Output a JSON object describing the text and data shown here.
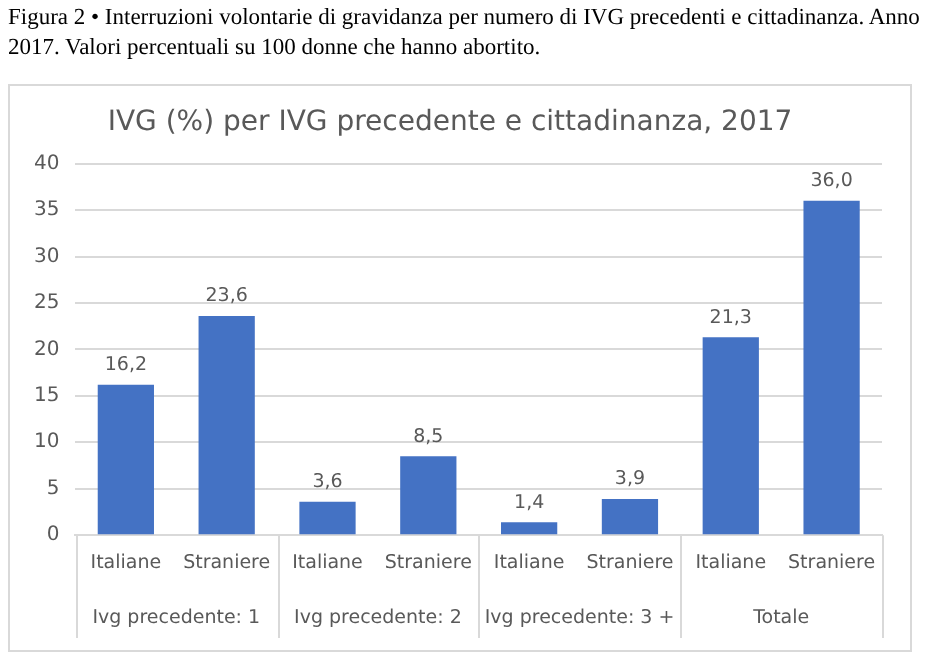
{
  "chart_data": {
    "type": "bar",
    "title": "IVG (%) per IVG precedente e cittadinanza, 2017",
    "subtitle": "Figura 2 • Interruzioni volontarie di gravidanza per numero di IVG precedenti e cittadinanza. Anno 2017. Valori percentuali su 100 donne che hanno abortito.",
    "categories": [
      "Italiane",
      "Straniere",
      "Italiane",
      "Straniere",
      "Italiane",
      "Straniere",
      "Italiane",
      "Straniere"
    ],
    "values": [
      16.2,
      23.6,
      3.6,
      8.5,
      1.4,
      3.9,
      21.3,
      36.0
    ],
    "value_labels": [
      "16,2",
      "23,6",
      "3,6",
      "8,5",
      "1,4",
      "3,9",
      "21,3",
      "36,0"
    ],
    "color": "#4472c4",
    "annotations": [
      "Ivg precedente: 1",
      "Ivg precedente: 2",
      "Ivg precedente: 3 +",
      "Totale"
    ],
    "ylim": [
      0,
      40
    ],
    "yticks": [
      0,
      5,
      10,
      15,
      20,
      25,
      30,
      35,
      40
    ],
    "grid": "y"
  }
}
